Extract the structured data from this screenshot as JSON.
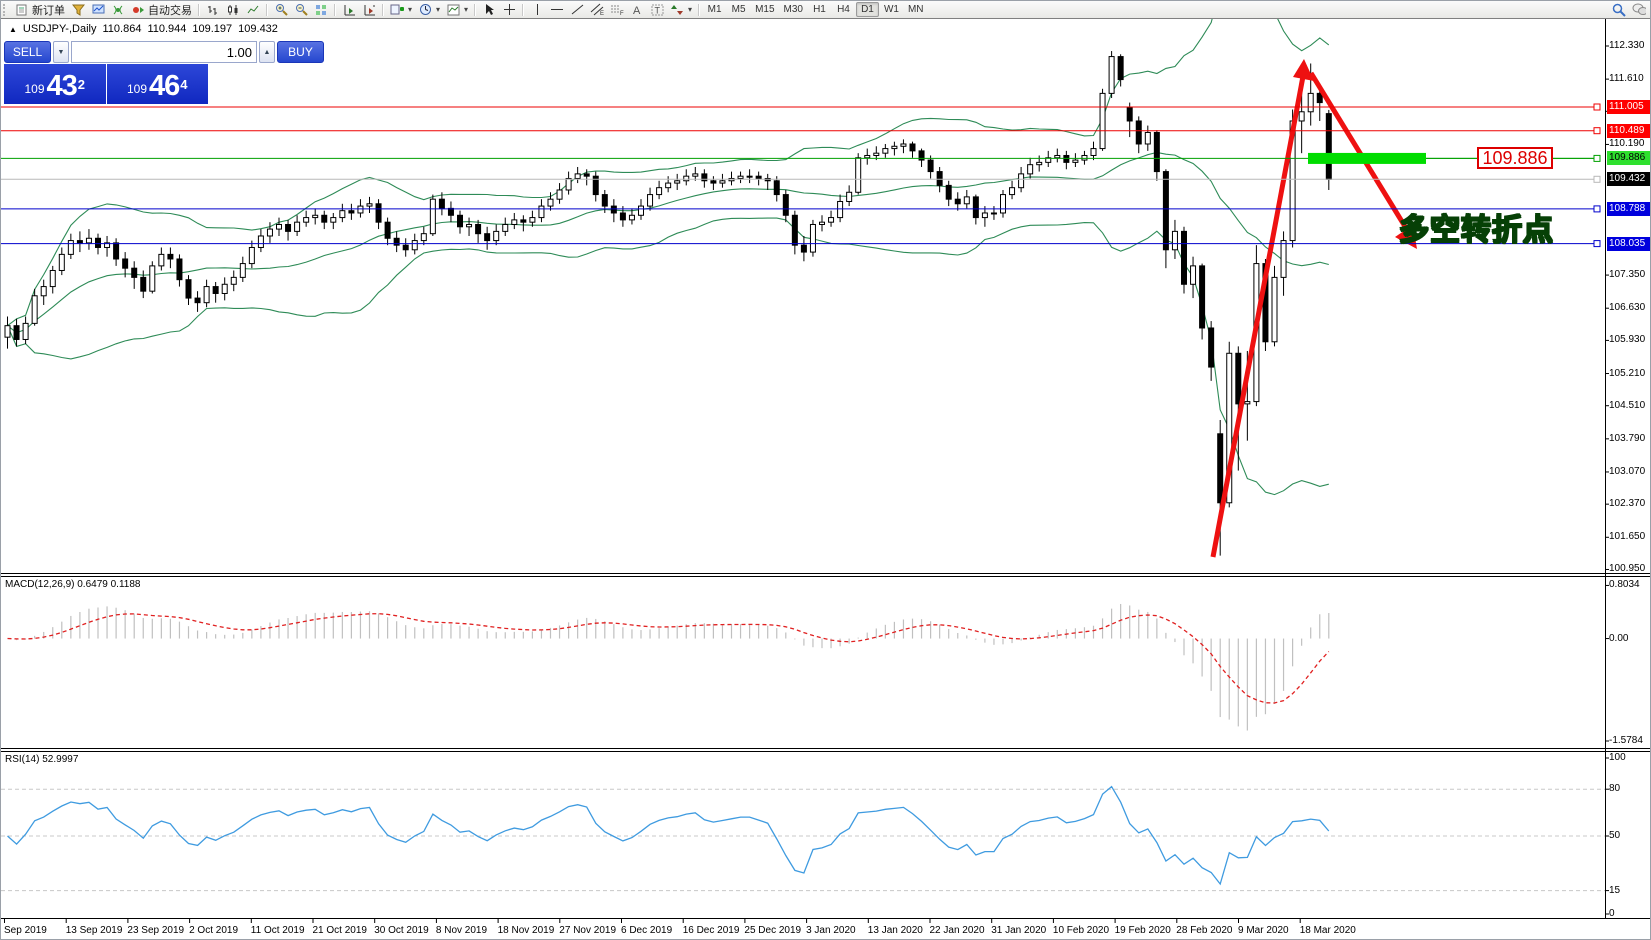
{
  "toolbar": {
    "new_order_label": "新订单",
    "autotrade_label": "自动交易",
    "timeframes": [
      "M1",
      "M5",
      "M15",
      "M30",
      "H1",
      "H4",
      "D1",
      "W1",
      "MN"
    ],
    "active_timeframe": "D1",
    "icons": [
      "new-order-icon",
      "funnel-icon",
      "market-watch-icon",
      "signal-icon",
      "autotrade-icon",
      "bar-chart-icon",
      "candlestick-icon",
      "line-chart-icon",
      "zoom-in-icon",
      "zoom-out-icon",
      "tile-windows-icon",
      "indicator-window-icon",
      "indicator-list-icon",
      "add-indicator-icon",
      "periods-clock-icon",
      "templates-icon",
      "cursor-icon",
      "crosshair-icon",
      "vertical-line-icon",
      "horizontal-line-icon",
      "trendline-icon",
      "channel-icon",
      "fibonacci-icon",
      "text-icon",
      "label-icon",
      "arrows-icon",
      "search-icon",
      "chat-icon"
    ]
  },
  "chart": {
    "title": {
      "symbol": "USDJPY-,Daily",
      "o": "110.864",
      "h": "110.944",
      "l": "109.197",
      "c": "109.432"
    },
    "trade_panel": {
      "sell_label": "SELL",
      "buy_label": "BUY",
      "volume": "1.00",
      "sell_small": "109",
      "sell_big": "43",
      "sell_sup": "2",
      "buy_small": "109",
      "buy_big": "46",
      "buy_sup": "4"
    },
    "price_axis_ticks": [
      "112.330",
      "111.610",
      "110.910",
      "110.190",
      "107.350",
      "106.630",
      "105.930",
      "105.210",
      "104.510",
      "103.790",
      "103.070",
      "102.370",
      "101.650",
      "100.950"
    ],
    "badges": [
      {
        "text": "111.005",
        "price": 111.005,
        "bg": "#ff0000",
        "fg": "#ffffff"
      },
      {
        "text": "110.489",
        "price": 110.489,
        "bg": "#ff0000",
        "fg": "#ffffff"
      },
      {
        "text": "109.886",
        "price": 109.886,
        "bg": "#2ee02e",
        "fg": "#000000"
      },
      {
        "text": "109.432",
        "price": 109.432,
        "bg": "#000000",
        "fg": "#ffffff"
      },
      {
        "text": "108.788",
        "price": 108.788,
        "bg": "#0000dd",
        "fg": "#ffffff"
      },
      {
        "text": "108.035",
        "price": 108.035,
        "bg": "#0000dd",
        "fg": "#ffffff"
      }
    ],
    "hlines": [
      {
        "price": 111.005,
        "color": "#ee0000"
      },
      {
        "price": 110.489,
        "color": "#ee0000"
      },
      {
        "price": 109.886,
        "color": "#00a000"
      },
      {
        "price": 109.432,
        "color": "#b8b8b8"
      },
      {
        "price": 108.788,
        "color": "#0000cc"
      },
      {
        "price": 108.035,
        "color": "#0000cc"
      }
    ],
    "annotations": {
      "price_label": "109.886",
      "turning_point": "多空转折点",
      "highlight_color": "#00dd00",
      "arrow_color": "#ee1111"
    }
  },
  "indicators": {
    "macd": {
      "text": "MACD(12,26,9) 0.6479 0.1188",
      "fast": 12,
      "slow": 26,
      "signal": 9,
      "axis_labels": [
        "0.8034",
        "0.00",
        "-1.5784"
      ],
      "axis_values": [
        0.8034,
        0,
        -1.5784
      ],
      "histogram_color": "#c0c0c0",
      "signal_color": "#e02020"
    },
    "rsi": {
      "text": "RSI(14) 52.9997",
      "period": 14,
      "value": 52.9997,
      "axis_labels": [
        "100",
        "80",
        "50",
        "15",
        "0"
      ],
      "axis_values": [
        100,
        80,
        50,
        15,
        0
      ],
      "levels": [
        80,
        50,
        15
      ],
      "line_color": "#3f9be0"
    },
    "bollinger": {
      "period": 20,
      "deviation": 2,
      "color": "#2e8b57"
    }
  },
  "chart_data": {
    "type": "candlestick",
    "symbol": "USDJPY-",
    "timeframe": "Daily",
    "title": "USDJPY-,Daily 110.864 110.944 109.197 109.432",
    "ylim": [
      100.95,
      112.33
    ],
    "x_tick_labels": [
      "Sep 2019",
      "13 Sep 2019",
      "23 Sep 2019",
      "2 Oct 2019",
      "11 Oct 2019",
      "21 Oct 2019",
      "30 Oct 2019",
      "8 Nov 2019",
      "18 Nov 2019",
      "27 Nov 2019",
      "6 Dec 2019",
      "16 Dec 2019",
      "25 Dec 2019",
      "3 Jan 2020",
      "13 Jan 2020",
      "22 Jan 2020",
      "31 Jan 2020",
      "10 Feb 2020",
      "19 Feb 2020",
      "28 Feb 2020",
      "9 Mar 2020",
      "18 Mar 2020"
    ],
    "key_levels": [
      111.005,
      110.489,
      109.886,
      109.432,
      108.788,
      108.035
    ],
    "candles": [
      [
        106.0,
        106.45,
        105.75,
        106.25
      ],
      [
        106.25,
        106.4,
        105.8,
        105.95
      ],
      [
        105.95,
        106.45,
        105.85,
        106.3
      ],
      [
        106.3,
        107.05,
        106.25,
        106.9
      ],
      [
        106.9,
        107.25,
        106.7,
        107.1
      ],
      [
        107.1,
        107.55,
        106.95,
        107.45
      ],
      [
        107.45,
        107.95,
        107.35,
        107.8
      ],
      [
        107.8,
        108.25,
        107.7,
        108.1
      ],
      [
        108.1,
        108.3,
        107.85,
        108.05
      ],
      [
        108.05,
        108.35,
        107.9,
        108.15
      ],
      [
        108.15,
        108.25,
        107.8,
        107.95
      ],
      [
        107.95,
        108.2,
        107.75,
        108.05
      ],
      [
        108.05,
        108.15,
        107.55,
        107.7
      ],
      [
        107.7,
        107.85,
        107.3,
        107.5
      ],
      [
        107.5,
        107.65,
        107.05,
        107.3
      ],
      [
        107.3,
        107.45,
        106.85,
        107.0
      ],
      [
        107.0,
        107.65,
        106.95,
        107.55
      ],
      [
        107.55,
        107.95,
        107.45,
        107.8
      ],
      [
        107.8,
        107.95,
        107.5,
        107.7
      ],
      [
        107.7,
        107.8,
        107.1,
        107.25
      ],
      [
        107.25,
        107.35,
        106.7,
        106.85
      ],
      [
        106.85,
        107.0,
        106.55,
        106.75
      ],
      [
        106.75,
        107.25,
        106.65,
        107.1
      ],
      [
        107.1,
        107.2,
        106.75,
        106.95
      ],
      [
        106.95,
        107.3,
        106.8,
        107.15
      ],
      [
        107.15,
        107.45,
        107.0,
        107.3
      ],
      [
        107.3,
        107.75,
        107.2,
        107.6
      ],
      [
        107.6,
        108.1,
        107.5,
        107.95
      ],
      [
        107.95,
        108.35,
        107.85,
        108.2
      ],
      [
        108.2,
        108.5,
        108.05,
        108.35
      ],
      [
        108.35,
        108.6,
        108.2,
        108.45
      ],
      [
        108.45,
        108.55,
        108.1,
        108.3
      ],
      [
        108.3,
        108.65,
        108.2,
        108.5
      ],
      [
        108.5,
        108.75,
        108.4,
        108.6
      ],
      [
        108.6,
        108.8,
        108.45,
        108.65
      ],
      [
        108.65,
        108.75,
        108.35,
        108.5
      ],
      [
        108.5,
        108.7,
        108.35,
        108.6
      ],
      [
        108.6,
        108.9,
        108.5,
        108.75
      ],
      [
        108.75,
        108.9,
        108.55,
        108.7
      ],
      [
        108.7,
        109.0,
        108.6,
        108.85
      ],
      [
        108.85,
        109.05,
        108.7,
        108.9
      ],
      [
        108.9,
        109.0,
        108.35,
        108.5
      ],
      [
        108.5,
        108.6,
        108.0,
        108.15
      ],
      [
        108.15,
        108.3,
        107.85,
        108.0
      ],
      [
        108.0,
        108.15,
        107.75,
        107.9
      ],
      [
        107.9,
        108.25,
        107.8,
        108.1
      ],
      [
        108.1,
        108.4,
        108.0,
        108.25
      ],
      [
        108.25,
        109.1,
        108.2,
        109.0
      ],
      [
        109.0,
        109.15,
        108.65,
        108.8
      ],
      [
        108.8,
        108.95,
        108.5,
        108.65
      ],
      [
        108.65,
        108.75,
        108.25,
        108.4
      ],
      [
        108.4,
        108.6,
        108.2,
        108.45
      ],
      [
        108.45,
        108.55,
        108.05,
        108.25
      ],
      [
        108.25,
        108.4,
        107.9,
        108.1
      ],
      [
        108.1,
        108.45,
        108.0,
        108.3
      ],
      [
        108.3,
        108.6,
        108.2,
        108.45
      ],
      [
        108.45,
        108.7,
        108.35,
        108.55
      ],
      [
        108.55,
        108.65,
        108.3,
        108.5
      ],
      [
        108.5,
        108.75,
        108.4,
        108.6
      ],
      [
        108.6,
        109.0,
        108.5,
        108.85
      ],
      [
        108.85,
        109.15,
        108.75,
        109.0
      ],
      [
        109.0,
        109.35,
        108.9,
        109.2
      ],
      [
        109.2,
        109.6,
        109.1,
        109.45
      ],
      [
        109.45,
        109.7,
        109.35,
        109.55
      ],
      [
        109.55,
        109.65,
        109.3,
        109.5
      ],
      [
        109.5,
        109.6,
        108.95,
        109.1
      ],
      [
        109.1,
        109.2,
        108.7,
        108.85
      ],
      [
        108.85,
        109.0,
        108.5,
        108.7
      ],
      [
        108.7,
        108.85,
        108.4,
        108.55
      ],
      [
        108.55,
        108.8,
        108.45,
        108.65
      ],
      [
        108.65,
        109.0,
        108.55,
        108.85
      ],
      [
        108.85,
        109.25,
        108.75,
        109.1
      ],
      [
        109.1,
        109.4,
        109.0,
        109.25
      ],
      [
        109.25,
        109.5,
        109.15,
        109.35
      ],
      [
        109.35,
        109.55,
        109.2,
        109.4
      ],
      [
        109.4,
        109.65,
        109.3,
        109.5
      ],
      [
        109.5,
        109.7,
        109.4,
        109.55
      ],
      [
        109.55,
        109.65,
        109.25,
        109.4
      ],
      [
        109.4,
        109.5,
        109.2,
        109.35
      ],
      [
        109.35,
        109.55,
        109.25,
        109.4
      ],
      [
        109.4,
        109.6,
        109.3,
        109.45
      ],
      [
        109.45,
        109.6,
        109.35,
        109.5
      ],
      [
        109.5,
        109.65,
        109.35,
        109.5
      ],
      [
        109.5,
        109.6,
        109.3,
        109.45
      ],
      [
        109.45,
        109.55,
        109.2,
        109.4
      ],
      [
        109.4,
        109.5,
        108.95,
        109.1
      ],
      [
        109.1,
        109.2,
        108.5,
        108.65
      ],
      [
        108.65,
        108.75,
        107.8,
        108.0
      ],
      [
        108.0,
        108.2,
        107.65,
        107.85
      ],
      [
        107.85,
        108.55,
        107.75,
        108.45
      ],
      [
        108.45,
        108.65,
        108.3,
        108.5
      ],
      [
        108.5,
        108.75,
        108.4,
        108.6
      ],
      [
        108.6,
        109.1,
        108.5,
        108.95
      ],
      [
        108.95,
        109.3,
        108.85,
        109.15
      ],
      [
        109.15,
        110.0,
        109.1,
        109.9
      ],
      [
        109.9,
        110.1,
        109.75,
        109.95
      ],
      [
        109.95,
        110.15,
        109.85,
        110.0
      ],
      [
        110.0,
        110.2,
        109.9,
        110.1
      ],
      [
        110.1,
        110.25,
        109.95,
        110.15
      ],
      [
        110.15,
        110.3,
        110.0,
        110.2
      ],
      [
        110.2,
        110.25,
        109.9,
        110.05
      ],
      [
        110.05,
        110.1,
        109.7,
        109.85
      ],
      [
        109.85,
        109.95,
        109.45,
        109.6
      ],
      [
        109.6,
        109.7,
        109.15,
        109.3
      ],
      [
        109.3,
        109.4,
        108.85,
        109.0
      ],
      [
        109.0,
        109.15,
        108.75,
        108.9
      ],
      [
        108.9,
        109.2,
        108.8,
        109.05
      ],
      [
        109.05,
        109.1,
        108.45,
        108.6
      ],
      [
        108.6,
        108.85,
        108.4,
        108.7
      ],
      [
        108.7,
        108.85,
        108.55,
        108.7
      ],
      [
        108.7,
        109.2,
        108.6,
        109.1
      ],
      [
        109.1,
        109.4,
        109.0,
        109.25
      ],
      [
        109.25,
        109.7,
        109.15,
        109.55
      ],
      [
        109.55,
        109.9,
        109.45,
        109.75
      ],
      [
        109.75,
        109.95,
        109.6,
        109.8
      ],
      [
        109.8,
        110.05,
        109.7,
        109.9
      ],
      [
        109.9,
        110.1,
        109.8,
        109.95
      ],
      [
        109.95,
        110.05,
        109.65,
        109.8
      ],
      [
        109.8,
        110.0,
        109.7,
        109.85
      ],
      [
        109.85,
        110.05,
        109.75,
        109.95
      ],
      [
        109.95,
        110.25,
        109.85,
        110.1
      ],
      [
        110.1,
        111.4,
        110.05,
        111.3
      ],
      [
        111.3,
        112.22,
        111.2,
        112.1
      ],
      [
        112.1,
        112.15,
        111.45,
        111.6
      ],
      [
        111.0,
        111.1,
        110.35,
        110.7
      ],
      [
        110.7,
        110.8,
        110.0,
        110.2
      ],
      [
        110.2,
        110.6,
        110.05,
        110.45
      ],
      [
        110.45,
        110.5,
        109.4,
        109.6
      ],
      [
        109.6,
        109.65,
        107.5,
        107.9
      ],
      [
        107.9,
        108.55,
        107.7,
        108.3
      ],
      [
        108.3,
        108.4,
        106.95,
        107.15
      ],
      [
        107.15,
        107.75,
        106.85,
        107.55
      ],
      [
        107.55,
        107.6,
        105.95,
        106.2
      ],
      [
        106.2,
        106.35,
        105.05,
        105.35
      ],
      [
        103.9,
        104.2,
        101.25,
        102.4
      ],
      [
        102.4,
        105.9,
        102.3,
        105.65
      ],
      [
        105.65,
        105.8,
        103.1,
        104.55
      ],
      [
        104.55,
        105.7,
        103.75,
        104.6
      ],
      [
        104.6,
        108.0,
        104.5,
        107.6
      ],
      [
        107.6,
        107.7,
        105.7,
        105.9
      ],
      [
        105.9,
        107.55,
        105.8,
        107.3
      ],
      [
        107.3,
        108.3,
        106.9,
        108.1
      ],
      [
        108.1,
        110.95,
        107.95,
        110.7
      ],
      [
        110.7,
        111.5,
        110.0,
        110.9
      ],
      [
        110.9,
        111.95,
        110.6,
        111.3
      ],
      [
        111.3,
        111.45,
        110.7,
        111.1
      ],
      [
        110.86,
        110.94,
        109.2,
        109.43
      ]
    ]
  }
}
